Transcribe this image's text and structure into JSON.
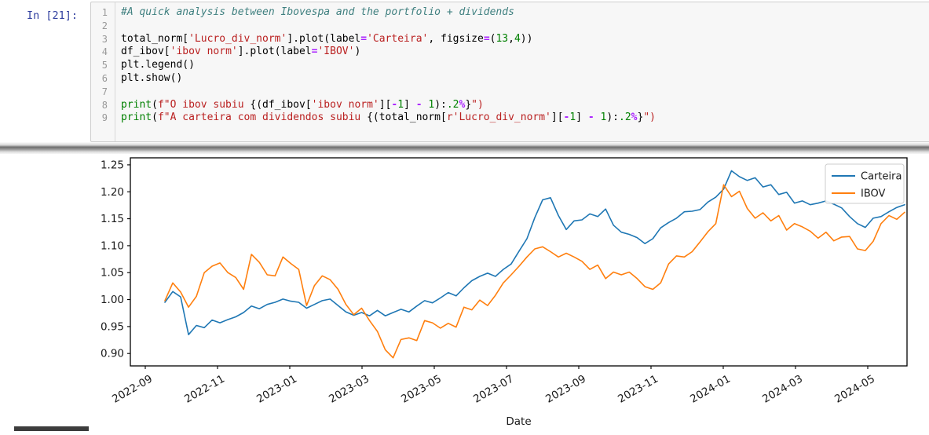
{
  "cell": {
    "prompt": "In [21]:",
    "code_lines": [
      [
        [
          "com",
          "#A quick analysis between Ibovespa and the portfolio + dividends"
        ]
      ],
      [],
      [
        [
          "pln",
          "total_norm["
        ],
        [
          "str",
          "'Lucro_div_norm'"
        ],
        [
          "pln",
          "].plot(label"
        ],
        [
          "op",
          "="
        ],
        [
          "str",
          "'Carteira'"
        ],
        [
          "pln",
          ", figsize"
        ],
        [
          "op",
          "="
        ],
        [
          "pln",
          "("
        ],
        [
          "num",
          "13"
        ],
        [
          "pln",
          ","
        ],
        [
          "num",
          "4"
        ],
        [
          "pln",
          "))"
        ]
      ],
      [
        [
          "pln",
          "df_ibov["
        ],
        [
          "str",
          "'ibov norm'"
        ],
        [
          "pln",
          "].plot(label"
        ],
        [
          "op",
          "="
        ],
        [
          "str",
          "'IBOV'"
        ],
        [
          "pln",
          ")"
        ]
      ],
      [
        [
          "pln",
          "plt.legend()"
        ]
      ],
      [
        [
          "pln",
          "plt.show()"
        ]
      ],
      [],
      [
        [
          "bui",
          "print"
        ],
        [
          "pln",
          "("
        ],
        [
          "str",
          "f\"O ibov subiu "
        ],
        [
          "pln",
          "{(df_ibov["
        ],
        [
          "str",
          "'ibov norm'"
        ],
        [
          "pln",
          "]["
        ],
        [
          "op",
          "-"
        ],
        [
          "num",
          "1"
        ],
        [
          "pln",
          "] "
        ],
        [
          "op",
          "-"
        ],
        [
          "pln",
          " "
        ],
        [
          "num",
          "1"
        ],
        [
          "pln",
          "):"
        ],
        [
          "num",
          ".2"
        ],
        [
          "op",
          "%"
        ],
        [
          "pln",
          "}"
        ],
        [
          "str",
          "\")"
        ]
      ],
      [
        [
          "bui",
          "print"
        ],
        [
          "pln",
          "("
        ],
        [
          "str",
          "f\"A carteira com dividendos subiu "
        ],
        [
          "pln",
          "{(total_norm["
        ],
        [
          "str",
          "r'Lucro_div_norm'"
        ],
        [
          "pln",
          "]["
        ],
        [
          "op",
          "-"
        ],
        [
          "num",
          "1"
        ],
        [
          "pln",
          "] "
        ],
        [
          "op",
          "-"
        ],
        [
          "pln",
          " "
        ],
        [
          "num",
          "1"
        ],
        [
          "pln",
          "):"
        ],
        [
          "num",
          ".2"
        ],
        [
          "op",
          "%"
        ],
        [
          "pln",
          "}"
        ],
        [
          "str",
          "\")"
        ]
      ]
    ]
  },
  "chart_data": {
    "type": "line",
    "title": "",
    "xlabel": "Date",
    "ylabel": "",
    "x_tick_labels": [
      "2022-09",
      "2022-11",
      "2023-01",
      "2023-03",
      "2023-05",
      "2023-07",
      "2023-09",
      "2023-11",
      "2024-01",
      "2024-03",
      "2024-05"
    ],
    "y_ticks": [
      1.25,
      1.2,
      1.15,
      1.1,
      1.05,
      1.0,
      0.95,
      0.9
    ],
    "ylim": [
      0.877,
      1.263
    ],
    "grid": false,
    "legend_position": "upper right",
    "x_range_note": "daily data from ~2022-09-15 to ~2024-05-15",
    "series": [
      {
        "name": "Carteira",
        "color": "#1f77b4",
        "values": [
          0.995,
          1.015,
          1.005,
          0.935,
          0.952,
          0.948,
          0.962,
          0.957,
          0.963,
          0.968,
          0.976,
          0.988,
          0.983,
          0.991,
          0.995,
          1.001,
          0.997,
          0.995,
          0.984,
          0.991,
          0.998,
          1.001,
          0.989,
          0.977,
          0.971,
          0.976,
          0.97,
          0.98,
          0.97,
          0.976,
          0.982,
          0.977,
          0.988,
          0.998,
          0.994,
          1.003,
          1.013,
          1.007,
          1.022,
          1.035,
          1.043,
          1.049,
          1.043,
          1.056,
          1.066,
          1.09,
          1.113,
          1.152,
          1.185,
          1.189,
          1.156,
          1.13,
          1.146,
          1.148,
          1.159,
          1.154,
          1.168,
          1.138,
          1.125,
          1.121,
          1.115,
          1.104,
          1.113,
          1.133,
          1.143,
          1.151,
          1.163,
          1.164,
          1.167,
          1.181,
          1.19,
          1.205,
          1.239,
          1.228,
          1.221,
          1.226,
          1.209,
          1.213,
          1.195,
          1.199,
          1.179,
          1.183,
          1.176,
          1.179,
          1.183,
          1.177,
          1.17,
          1.154,
          1.141,
          1.134,
          1.151,
          1.154,
          1.163,
          1.171,
          1.176
        ]
      },
      {
        "name": "IBOV",
        "color": "#ff7f0e",
        "values": [
          0.998,
          1.031,
          1.014,
          0.986,
          1.006,
          1.05,
          1.062,
          1.068,
          1.05,
          1.041,
          1.019,
          1.084,
          1.069,
          1.046,
          1.044,
          1.079,
          1.067,
          1.056,
          0.989,
          1.026,
          1.044,
          1.037,
          1.019,
          0.991,
          0.972,
          0.984,
          0.961,
          0.941,
          0.907,
          0.892,
          0.926,
          0.929,
          0.924,
          0.961,
          0.957,
          0.947,
          0.956,
          0.949,
          0.986,
          0.981,
          0.999,
          0.989,
          1.008,
          1.031,
          1.046,
          1.062,
          1.079,
          1.094,
          1.098,
          1.089,
          1.079,
          1.086,
          1.079,
          1.071,
          1.056,
          1.064,
          1.039,
          1.051,
          1.046,
          1.051,
          1.039,
          1.024,
          1.019,
          1.031,
          1.066,
          1.081,
          1.079,
          1.089,
          1.107,
          1.126,
          1.141,
          1.213,
          1.191,
          1.201,
          1.169,
          1.151,
          1.161,
          1.146,
          1.156,
          1.129,
          1.141,
          1.135,
          1.127,
          1.114,
          1.125,
          1.109,
          1.116,
          1.117,
          1.094,
          1.091,
          1.108,
          1.141,
          1.156,
          1.149,
          1.162
        ]
      }
    ]
  },
  "colors": {
    "prompt_blue": "#303F9F",
    "series_blue": "#1f77b4",
    "series_orange": "#ff7f0e",
    "cell_border": "#cfcfcf"
  }
}
